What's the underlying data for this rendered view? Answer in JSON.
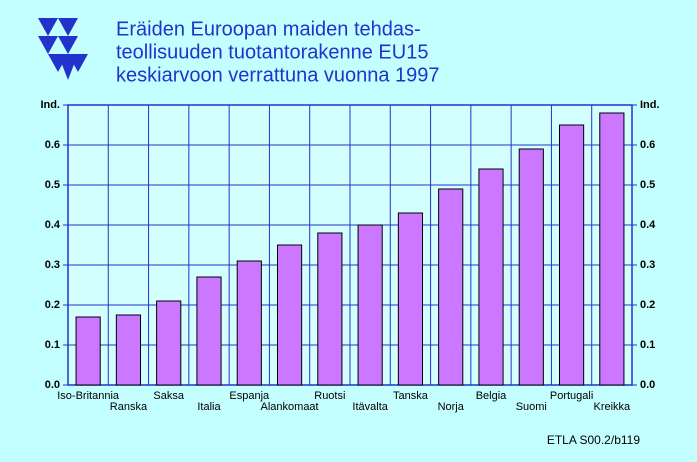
{
  "chart_data": {
    "type": "bar",
    "title": [
      "Eräiden Euroopan maiden tehdas-",
      "teollisuuden tuotantorakenne EU15",
      "keskiarvoon verrattuna vuonna 1997"
    ],
    "categories": [
      "Iso-Britannia",
      "Ranska",
      "Saksa",
      "Italia",
      "Espanja",
      "Alankomaat",
      "Ruotsi",
      "Itävalta",
      "Tanska",
      "Norja",
      "Belgia",
      "Suomi",
      "Portugali",
      "Kreikka"
    ],
    "values": [
      0.17,
      0.175,
      0.21,
      0.27,
      0.31,
      0.35,
      0.38,
      0.4,
      0.43,
      0.49,
      0.54,
      0.59,
      0.65,
      0.68
    ],
    "color": "#cc77ff",
    "ylim": [
      0,
      0.7
    ],
    "yticks": [
      {
        "value": 0,
        "label": "0.0"
      },
      0.1,
      0.2,
      0.3,
      0.4,
      0.5,
      0.6,
      {
        "value": 0.7,
        "label": "Ind."
      }
    ],
    "grid": true,
    "source": "ETLA S00.2/b119"
  }
}
